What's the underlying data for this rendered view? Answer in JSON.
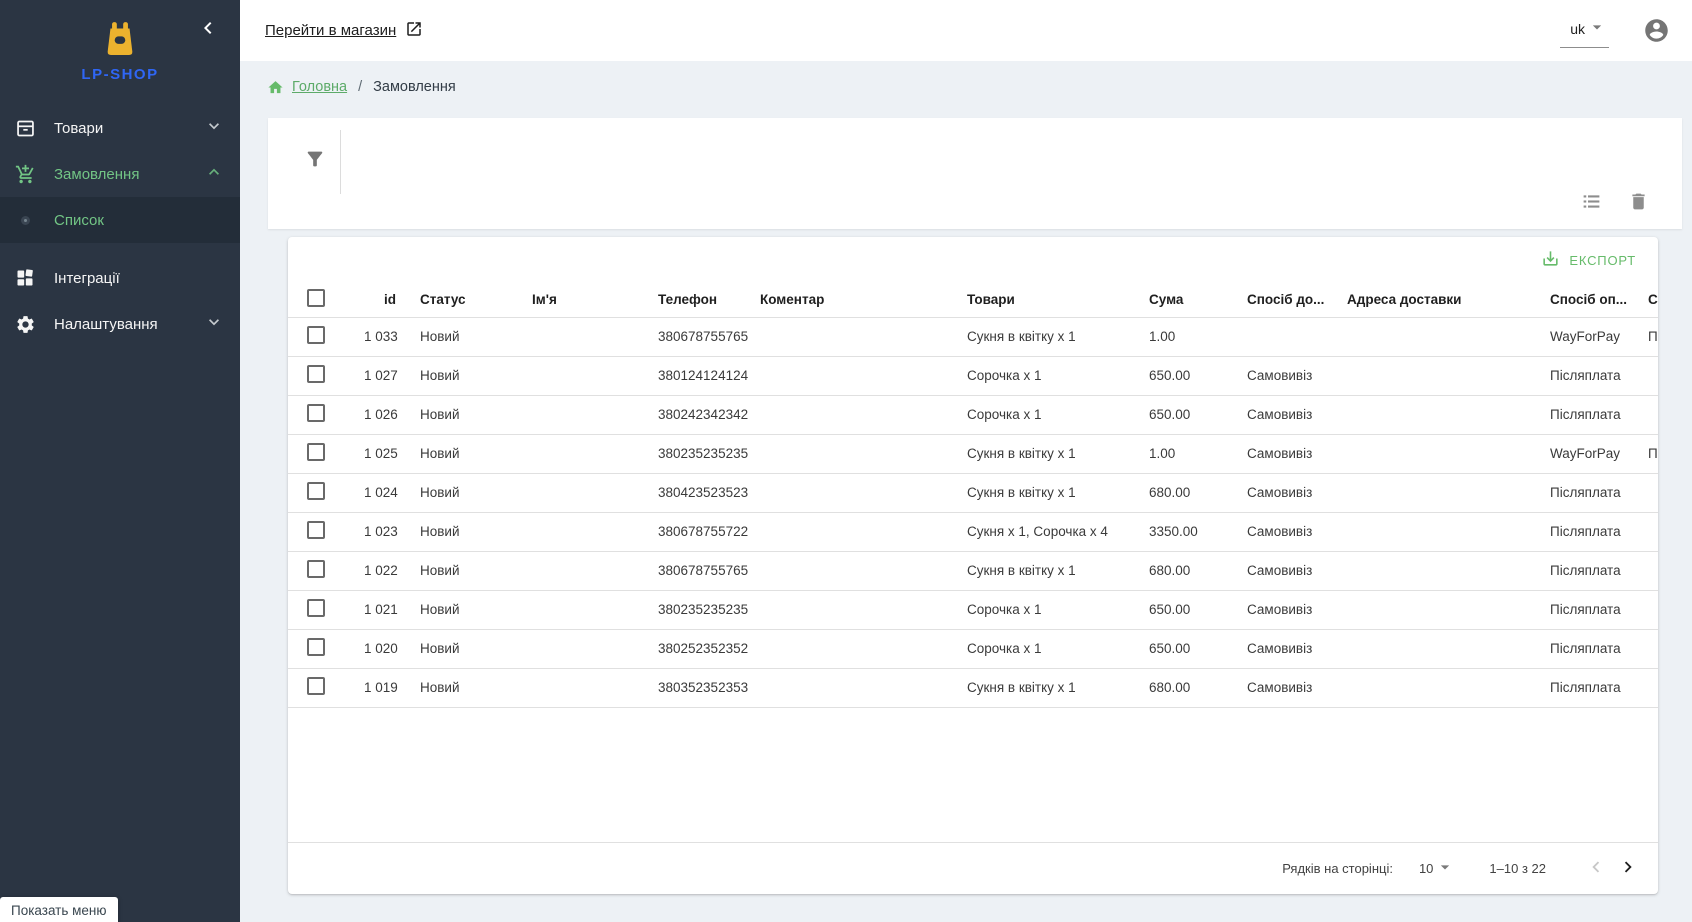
{
  "app": {
    "name": "LP-SHOP"
  },
  "colors": {
    "sidebar_bg": "#2b3543",
    "accent_green": "#66bb6a",
    "logo_blue": "#2f66f5",
    "logo_amber": "#ecb22e",
    "page_bg": "#edf1f5"
  },
  "sidebar": {
    "logo_text": "LP-SHOP",
    "items": {
      "products": {
        "label": "Товари"
      },
      "orders": {
        "label": "Замовлення"
      },
      "orders_list": {
        "label": "Список"
      },
      "integrations": {
        "label": "Інтеграції"
      },
      "settings": {
        "label": "Налаштування"
      }
    },
    "tooltip": "Показать меню"
  },
  "topbar": {
    "shop_link": "Перейти в магазин",
    "language": "uk"
  },
  "breadcrumb": {
    "home": "Головна",
    "separator": "/",
    "current": "Замовлення"
  },
  "toolbar": {
    "export_label": "ЕКСПОРТ"
  },
  "table": {
    "columns": [
      "id",
      "Статус",
      "Ім'я",
      "Телефон",
      "Коментар",
      "Товари",
      "Сума",
      "Спосіб до...",
      "Адреса доставки",
      "Спосіб оп...",
      "С..."
    ],
    "rows": [
      {
        "id": "1 033",
        "status": "Новий",
        "name": "",
        "phone": "380678755765",
        "comment": "",
        "products": "Сукня в квітку x 1",
        "sum": "1.00",
        "delivery": "",
        "address": "",
        "payment": "WayForPay",
        "extra": "П"
      },
      {
        "id": "1 027",
        "status": "Новий",
        "name": "",
        "phone": "380124124124",
        "comment": "",
        "products": "Сорочка x 1",
        "sum": "650.00",
        "delivery": "Самовивіз",
        "address": "",
        "payment": "Післяплата",
        "extra": ""
      },
      {
        "id": "1 026",
        "status": "Новий",
        "name": "",
        "phone": "380242342342",
        "comment": "",
        "products": "Сорочка x 1",
        "sum": "650.00",
        "delivery": "Самовивіз",
        "address": "",
        "payment": "Післяплата",
        "extra": ""
      },
      {
        "id": "1 025",
        "status": "Новий",
        "name": "",
        "phone": "380235235235",
        "comment": "",
        "products": "Сукня в квітку x 1",
        "sum": "1.00",
        "delivery": "Самовивіз",
        "address": "",
        "payment": "WayForPay",
        "extra": "П"
      },
      {
        "id": "1 024",
        "status": "Новий",
        "name": "",
        "phone": "380423523523",
        "comment": "",
        "products": "Сукня в квітку x 1",
        "sum": "680.00",
        "delivery": "Самовивіз",
        "address": "",
        "payment": "Післяплата",
        "extra": ""
      },
      {
        "id": "1 023",
        "status": "Новий",
        "name": "",
        "phone": "380678755722",
        "comment": "",
        "products": "Сукня x 1, Сорочка x 4",
        "sum": "3350.00",
        "delivery": "Самовивіз",
        "address": "",
        "payment": "Післяплата",
        "extra": ""
      },
      {
        "id": "1 022",
        "status": "Новий",
        "name": "",
        "phone": "380678755765",
        "comment": "",
        "products": "Сукня в квітку x 1",
        "sum": "680.00",
        "delivery": "Самовивіз",
        "address": "",
        "payment": "Післяплата",
        "extra": ""
      },
      {
        "id": "1 021",
        "status": "Новий",
        "name": "",
        "phone": "380235235235",
        "comment": "",
        "products": "Сорочка x 1",
        "sum": "650.00",
        "delivery": "Самовивіз",
        "address": "",
        "payment": "Післяплата",
        "extra": ""
      },
      {
        "id": "1 020",
        "status": "Новий",
        "name": "",
        "phone": "380252352352",
        "comment": "",
        "products": "Сорочка x 1",
        "sum": "650.00",
        "delivery": "Самовивіз",
        "address": "",
        "payment": "Післяплата",
        "extra": ""
      },
      {
        "id": "1 019",
        "status": "Новий",
        "name": "",
        "phone": "380352352353",
        "comment": "",
        "products": "Сукня в квітку x 1",
        "sum": "680.00",
        "delivery": "Самовивіз",
        "address": "",
        "payment": "Післяплата",
        "extra": ""
      }
    ]
  },
  "pagination": {
    "rows_per_page_label": "Рядків на сторінці:",
    "rows_per_page": "10",
    "range": "1–10 з 22"
  }
}
